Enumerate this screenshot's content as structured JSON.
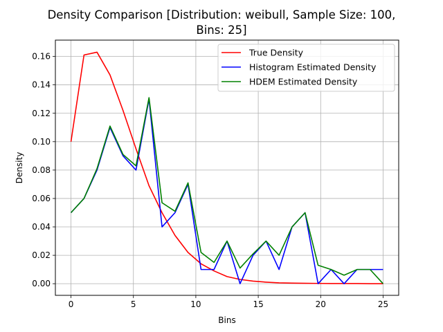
{
  "chart_data": {
    "type": "line",
    "title_line1": "Density Comparison [Distribution: weibull, Sample Size: 100,",
    "title_line2": "Bins: 25]",
    "xlabel": "Bins",
    "ylabel": "Density",
    "xlim": [
      -1.25,
      26.25
    ],
    "ylim": [
      -0.0082,
      0.1715
    ],
    "xticks": [
      0,
      5,
      10,
      15,
      20,
      25
    ],
    "yticks": [
      0.0,
      0.02,
      0.04,
      0.06,
      0.08,
      0.1,
      0.12,
      0.14,
      0.16
    ],
    "ytick_labels": [
      "0.00",
      "0.02",
      "0.04",
      "0.06",
      "0.08",
      "0.10",
      "0.12",
      "0.14",
      "0.16"
    ],
    "grid": true,
    "legend": "top-right",
    "series": [
      {
        "name": "True Density",
        "color": "#ff0000",
        "x": [
          0,
          1.042,
          2.083,
          3.125,
          4.167,
          5.208,
          6.25,
          7.292,
          8.333,
          9.375,
          10.417,
          11.458,
          12.5,
          13.542,
          14.583,
          15.625,
          16.667,
          17.708,
          18.75,
          19.792,
          20.833,
          21.875,
          22.917,
          23.958,
          25
        ],
        "y": [
          0.1,
          0.161,
          0.163,
          0.147,
          0.122,
          0.095,
          0.069,
          0.05,
          0.034,
          0.022,
          0.014,
          0.009,
          0.005,
          0.003,
          0.0018,
          0.0011,
          0.0006,
          0.0004,
          0.0003,
          0.0002,
          0.0001,
          0.0001,
          0.0001,
          0.0,
          0.0
        ]
      },
      {
        "name": "Histogram Estimated Density",
        "color": "#0000ff",
        "x": [
          0,
          1.042,
          2.083,
          3.125,
          4.167,
          5.208,
          6.25,
          7.292,
          8.333,
          9.375,
          10.417,
          11.458,
          12.5,
          13.542,
          14.583,
          15.625,
          16.667,
          17.708,
          18.75,
          19.792,
          20.833,
          21.875,
          22.917,
          23.958,
          25
        ],
        "y": [
          0.05,
          0.06,
          0.08,
          0.11,
          0.09,
          0.08,
          0.13,
          0.04,
          0.05,
          0.07,
          0.01,
          0.01,
          0.03,
          0.0,
          0.02,
          0.03,
          0.01,
          0.04,
          0.05,
          0.0,
          0.01,
          0.0,
          0.01,
          0.01,
          0.01
        ]
      },
      {
        "name": "HDEM Estimated Density",
        "color": "#008000",
        "x": [
          0,
          1.042,
          2.083,
          3.125,
          4.167,
          5.208,
          6.25,
          7.292,
          8.333,
          9.375,
          10.417,
          11.458,
          12.5,
          13.542,
          14.583,
          15.625,
          16.667,
          17.708,
          18.75,
          19.792,
          20.833,
          21.875,
          22.917,
          23.958,
          25
        ],
        "y": [
          0.05,
          0.06,
          0.081,
          0.111,
          0.091,
          0.083,
          0.131,
          0.057,
          0.051,
          0.071,
          0.022,
          0.015,
          0.03,
          0.011,
          0.021,
          0.03,
          0.02,
          0.04,
          0.05,
          0.013,
          0.01,
          0.006,
          0.01,
          0.01,
          0.0
        ]
      }
    ]
  }
}
